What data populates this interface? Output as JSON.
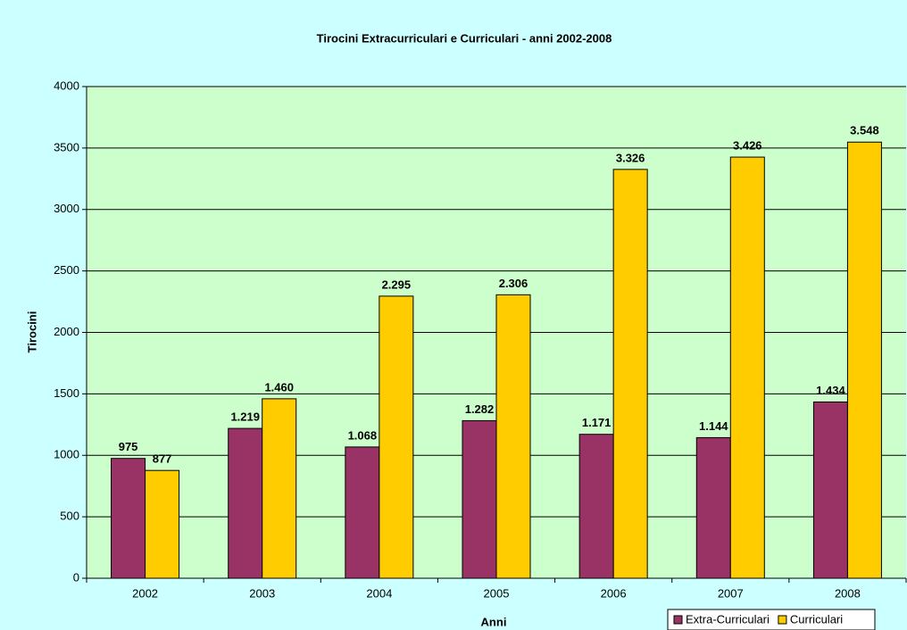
{
  "chart_data": {
    "type": "bar",
    "title": "Tirocini Extracurriculari e Curriculari - anni 2002-2008",
    "x_label": "Anni",
    "y_label": "Tirocini",
    "categories": [
      "2002",
      "2003",
      "2004",
      "2005",
      "2006",
      "2007",
      "2008"
    ],
    "series": [
      {
        "name": "Extra-Curriculari",
        "color": "#993366",
        "values": [
          975,
          1219,
          1068,
          1282,
          1171,
          1144,
          1434
        ],
        "value_labels": [
          "975",
          "1.219",
          "1.068",
          "1.282",
          "1.171",
          "1.144",
          "1.434"
        ]
      },
      {
        "name": "Curriculari",
        "color": "#ffcc00",
        "values": [
          877,
          1460,
          2295,
          2306,
          3326,
          3426,
          3548
        ],
        "value_labels": [
          "877",
          "1.460",
          "2.295",
          "2.306",
          "3.326",
          "3.426",
          "3.548"
        ]
      }
    ],
    "ylim": [
      0,
      4000
    ],
    "yticks": [
      0,
      500,
      1000,
      1500,
      2000,
      2500,
      3000,
      3500,
      4000
    ],
    "grid": true,
    "legend": "bottom-right"
  }
}
